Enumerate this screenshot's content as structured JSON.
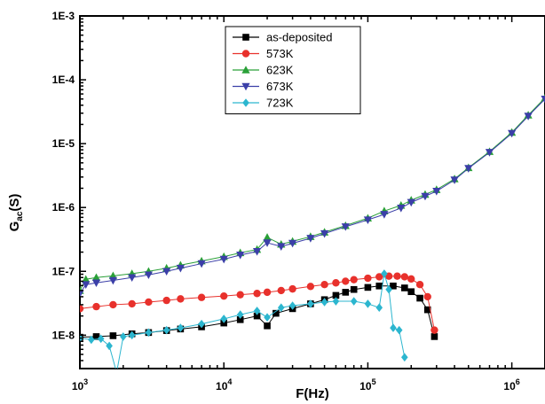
{
  "chart_data": {
    "type": "scatter",
    "title": "",
    "xlabel_main": "F(Hz)",
    "ylabel_main": "G",
    "ylabel_sub": "ac",
    "ylabel_unit": "(S)",
    "x_scale": "log",
    "y_scale": "log",
    "xlim": [
      1000,
      1700000
    ],
    "ylim": [
      3e-09,
      0.001
    ],
    "x_ticks": [
      {
        "value": 1000,
        "base": "10",
        "exp": "3"
      },
      {
        "value": 10000,
        "base": "10",
        "exp": "4"
      },
      {
        "value": 100000,
        "base": "10",
        "exp": "5"
      },
      {
        "value": 1000000,
        "base": "10",
        "exp": "6"
      }
    ],
    "y_ticks": [
      {
        "value": 1e-08,
        "label": "1E-8"
      },
      {
        "value": 1e-07,
        "label": "1E-7"
      },
      {
        "value": 1e-06,
        "label": "1E-6"
      },
      {
        "value": 1e-05,
        "label": "1E-5"
      },
      {
        "value": 0.0001,
        "label": "1E-4"
      },
      {
        "value": 0.001,
        "label": "1E-3"
      }
    ],
    "legend_position": "top-center",
    "grid": false,
    "series": [
      {
        "name": "as-deposited",
        "color": "#000000",
        "marker": "square",
        "x": [
          1000,
          1300,
          1700,
          2300,
          3000,
          4000,
          5000,
          7000,
          10000,
          13000,
          17000,
          20000,
          23000,
          30000,
          40000,
          50000,
          60000,
          70000,
          80000,
          100000,
          120000,
          150000,
          180000,
          200000,
          230000,
          260000,
          290000
        ],
        "y": [
          9.3e-09,
          9.5e-09,
          9.8e-09,
          1.05e-08,
          1.1e-08,
          1.18e-08,
          1.25e-08,
          1.35e-08,
          1.55e-08,
          1.75e-08,
          2e-08,
          1.4e-08,
          2.2e-08,
          2.6e-08,
          3.1e-08,
          3.6e-08,
          4.2e-08,
          4.7e-08,
          5.2e-08,
          5.6e-08,
          5.9e-08,
          5.9e-08,
          5.5e-08,
          4.8e-08,
          3.8e-08,
          2.5e-08,
          9.5e-09
        ]
      },
      {
        "name": "573K",
        "color": "#e8312c",
        "marker": "circle",
        "x": [
          1000,
          1300,
          1700,
          2300,
          3000,
          4000,
          5000,
          7000,
          10000,
          13000,
          17000,
          20000,
          25000,
          30000,
          40000,
          50000,
          60000,
          70000,
          80000,
          100000,
          120000,
          140000,
          160000,
          180000,
          200000,
          230000,
          260000,
          290000
        ],
        "y": [
          2.6e-08,
          2.8e-08,
          3e-08,
          3.1e-08,
          3.3e-08,
          3.5e-08,
          3.7e-08,
          3.9e-08,
          4.1e-08,
          4.3e-08,
          4.5e-08,
          4.7e-08,
          5e-08,
          5.3e-08,
          5.8e-08,
          6.2e-08,
          6.6e-08,
          7e-08,
          7.4e-08,
          7.8e-08,
          8.2e-08,
          8.4e-08,
          8.4e-08,
          8.2e-08,
          7.6e-08,
          6.2e-08,
          4e-08,
          1.2e-08
        ]
      },
      {
        "name": "623K",
        "color": "#2aa038",
        "marker": "triangle-up",
        "x": [
          1000,
          1100,
          1300,
          1700,
          2300,
          3000,
          4000,
          5000,
          7000,
          10000,
          13000,
          17000,
          20000,
          25000,
          30000,
          40000,
          50000,
          70000,
          100000,
          130000,
          170000,
          200000,
          250000,
          300000,
          400000,
          500000,
          700000,
          1000000,
          1300000,
          1700000
        ],
        "y": [
          5e-08,
          7.5e-08,
          8e-08,
          8.5e-08,
          9.2e-08,
          1e-07,
          1.12e-07,
          1.25e-07,
          1.45e-07,
          1.7e-07,
          1.95e-07,
          2.2e-07,
          3.4e-07,
          2.65e-07,
          2.95e-07,
          3.5e-07,
          4.1e-07,
          5.2e-07,
          6.8e-07,
          8.8e-07,
          1.08e-06,
          1.3e-06,
          1.6e-06,
          1.9e-06,
          2.8e-06,
          4.2e-06,
          7.5e-06,
          1.5e-05,
          2.8e-05,
          5.2e-05
        ]
      },
      {
        "name": "673K",
        "color": "#3b3fa8",
        "marker": "triangle-down",
        "x": [
          1000,
          1100,
          1300,
          1700,
          2300,
          3000,
          4000,
          5000,
          7000,
          10000,
          13000,
          17000,
          20000,
          25000,
          30000,
          40000,
          50000,
          70000,
          100000,
          130000,
          170000,
          200000,
          250000,
          300000,
          400000,
          500000,
          700000,
          1000000,
          1300000,
          1700000
        ],
        "y": [
          4.5e-08,
          6.2e-08,
          6.6e-08,
          7.2e-08,
          8e-08,
          8.8e-08,
          1e-07,
          1.12e-07,
          1.32e-07,
          1.55e-07,
          1.8e-07,
          2.05e-07,
          2.8e-07,
          2.45e-07,
          2.75e-07,
          3.3e-07,
          3.9e-07,
          5e-07,
          6.4e-07,
          7.8e-07,
          9.8e-07,
          1.2e-06,
          1.5e-06,
          1.8e-06,
          2.7e-06,
          4.1e-06,
          7.3e-06,
          1.45e-05,
          2.7e-05,
          5e-05
        ]
      },
      {
        "name": "723K",
        "color": "#2cb6cf",
        "marker": "diamond",
        "x": [
          1000,
          1200,
          1400,
          1600,
          1800,
          2000,
          2300,
          3000,
          4000,
          5000,
          7000,
          10000,
          13000,
          17000,
          20000,
          25000,
          30000,
          40000,
          50000,
          60000,
          80000,
          100000,
          120000,
          130000,
          140000,
          150000,
          165000,
          180000
        ],
        "y": [
          9e-09,
          8.5e-09,
          8.8e-09,
          6.8e-09,
          2.6e-09,
          9.5e-09,
          1e-08,
          1.1e-08,
          1.2e-08,
          1.3e-08,
          1.5e-08,
          1.8e-08,
          2.1e-08,
          2.4e-08,
          1.9e-08,
          2.7e-08,
          2.9e-08,
          3.1e-08,
          3.3e-08,
          3.4e-08,
          3.4e-08,
          3.1e-08,
          2.7e-08,
          9.2e-08,
          5.2e-08,
          1.3e-08,
          1.2e-08,
          4.5e-09
        ]
      }
    ]
  }
}
